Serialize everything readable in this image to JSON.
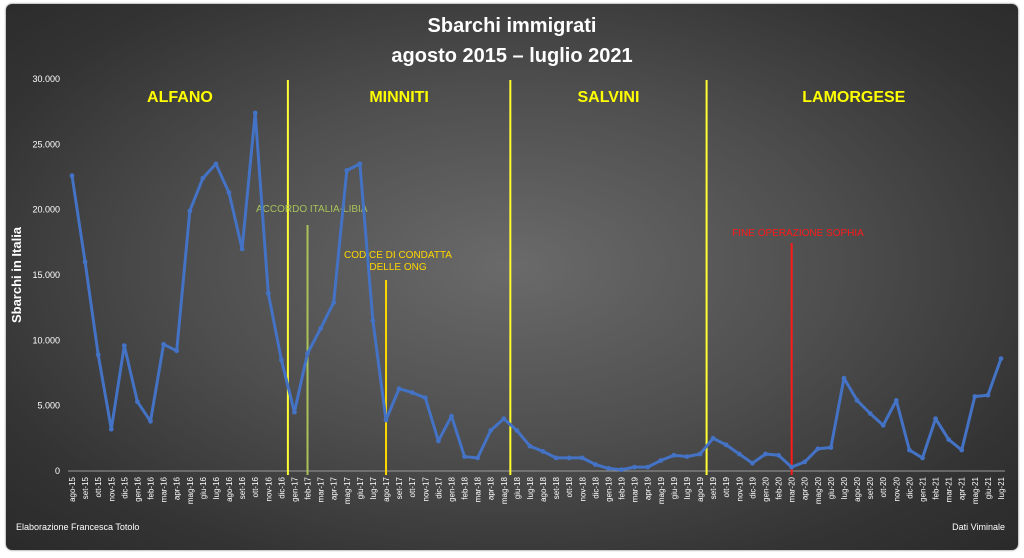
{
  "chart_data": {
    "type": "line",
    "title": [
      "Sbarchi immigrati",
      "agosto 2015 – luglio 2021"
    ],
    "ylabel": "Sbarchi in Italia",
    "xlabel": "",
    "ylim": [
      0,
      30000
    ],
    "yticks": [
      "0",
      "5.000",
      "10.000",
      "15.000",
      "20.000",
      "25.000",
      "30.000"
    ],
    "ytick_values": [
      0,
      5000,
      10000,
      15000,
      20000,
      25000,
      30000
    ],
    "grid": false,
    "line_color": "#4472C4",
    "categories": [
      "ago-15",
      "set-15",
      "ott-15",
      "nov-15",
      "dic-15",
      "gen-16",
      "feb-16",
      "mar-16",
      "apr-16",
      "mag-16",
      "giu-16",
      "lug-16",
      "ago-16",
      "set-16",
      "ott-16",
      "nov-16",
      "dic-16",
      "gen-17",
      "feb-17",
      "mar-17",
      "apr-17",
      "mag-17",
      "giu-17",
      "lug-17",
      "ago-17",
      "set-17",
      "ott-17",
      "nov-17",
      "dic-17",
      "gen-18",
      "feb-18",
      "mar-18",
      "apr-18",
      "mag-18",
      "giu-18",
      "lug-18",
      "ago-18",
      "set-18",
      "ott-18",
      "nov-18",
      "dic-18",
      "gen-19",
      "feb-19",
      "mar-19",
      "apr-19",
      "mag-19",
      "giu-19",
      "lug-19",
      "ago-19",
      "set-19",
      "ott-19",
      "nov-19",
      "dic-19",
      "gen-20",
      "feb-20",
      "mar-20",
      "apr-20",
      "mag-20",
      "giu-20",
      "lug-20",
      "ago-20",
      "set-20",
      "ott-20",
      "nov-20",
      "dic-20",
      "gen-21",
      "feb-21",
      "mar-21",
      "apr-21",
      "mag-21",
      "giu-21",
      "lug-21"
    ],
    "series": [
      {
        "values": [
          22600,
          16000,
          8900,
          3200,
          9600,
          5300,
          3800,
          9700,
          9200,
          19900,
          22400,
          23500,
          21300,
          17000,
          27400,
          13600,
          8500,
          4500,
          9000,
          10900,
          12900,
          23000,
          23500,
          11500,
          3900,
          6300,
          6000,
          5600,
          2300,
          4200,
          1100,
          1000,
          3100,
          4000,
          3100,
          1900,
          1500,
          1000,
          1000,
          1000,
          500,
          200,
          100,
          300,
          300,
          800,
          1200,
          1100,
          1300,
          2500,
          2000,
          1300,
          600,
          1300,
          1200,
          300,
          700,
          1700,
          1800,
          7100,
          5400,
          4400,
          3500,
          5400,
          1600,
          1000,
          4000,
          2400,
          1600,
          5700,
          5800,
          8600
        ]
      }
    ],
    "period_dividers_after": [
      "dic-16",
      "mag-18",
      "ago-19"
    ],
    "periods": [
      {
        "label": "ALFANO",
        "color": "#FFFF00"
      },
      {
        "label": "MINNITI",
        "color": "#FFFF00"
      },
      {
        "label": "SALVINI",
        "color": "#FFFF00"
      },
      {
        "label": "LAMORGESE",
        "color": "#FFFF00"
      }
    ],
    "annotations": [
      {
        "lines": [
          "ACCORDO ITALIA-LIBIA"
        ],
        "at": "feb-17",
        "color": "#A9C25A"
      },
      {
        "lines": [
          "CODICE DI CONDATTA",
          "DELLE ONG"
        ],
        "at": "ago-17",
        "color": "#FFD700"
      },
      {
        "lines": [
          "FINE OPERAZIONE SOPHIA"
        ],
        "at": "mar-20",
        "color": "#FF1A1A"
      }
    ]
  },
  "footer": {
    "left": "Elaborazione Francesca Totolo",
    "right": "Dati Viminale"
  }
}
